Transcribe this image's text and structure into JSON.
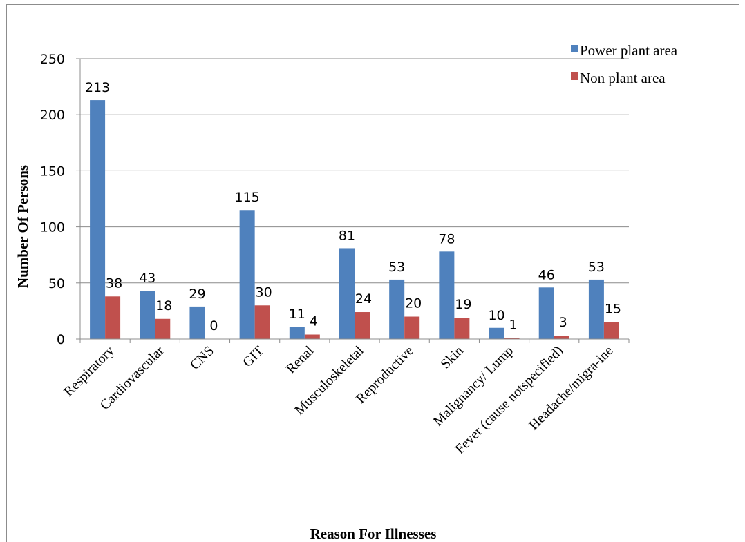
{
  "chart_data": {
    "type": "bar",
    "title": "",
    "xlabel": "Reason For Illnesses",
    "ylabel": "Number Of Persons",
    "ylim": [
      0,
      250
    ],
    "yticks": [
      0,
      50,
      100,
      150,
      200,
      250
    ],
    "grid": true,
    "legend_position": "top-right",
    "categories": [
      "Respiratory",
      "Cardiovascular",
      "CNS",
      "GIT",
      "Renal",
      "Musculoskeletal",
      "Reproductive",
      "Skin",
      "Malignancy/ Lump",
      "Fever (cause notspecified)",
      "Headache/migra-ine"
    ],
    "series": [
      {
        "name": "Power plant area",
        "color": "#4f81bd",
        "values": [
          213,
          43,
          29,
          115,
          11,
          81,
          53,
          78,
          10,
          46,
          53
        ]
      },
      {
        "name": "Non plant area",
        "color": "#c0504d",
        "values": [
          38,
          18,
          0,
          30,
          4,
          24,
          20,
          19,
          1,
          3,
          15
        ]
      }
    ]
  }
}
